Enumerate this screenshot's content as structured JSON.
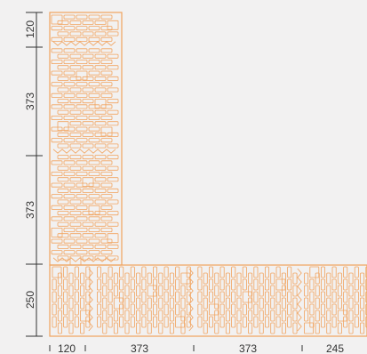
{
  "colors": {
    "background": "#f2f1f1",
    "brick_stroke": "#f1a35e",
    "dimension_line": "#333333",
    "dimension_text": "#333333"
  },
  "vertical_dimensions": [
    {
      "label": "120"
    },
    {
      "label": "373"
    },
    {
      "label": "373"
    },
    {
      "label": "250"
    }
  ],
  "horizontal_dimensions": [
    {
      "label": "120"
    },
    {
      "label": "373"
    },
    {
      "label": "373"
    },
    {
      "label": "245"
    }
  ]
}
